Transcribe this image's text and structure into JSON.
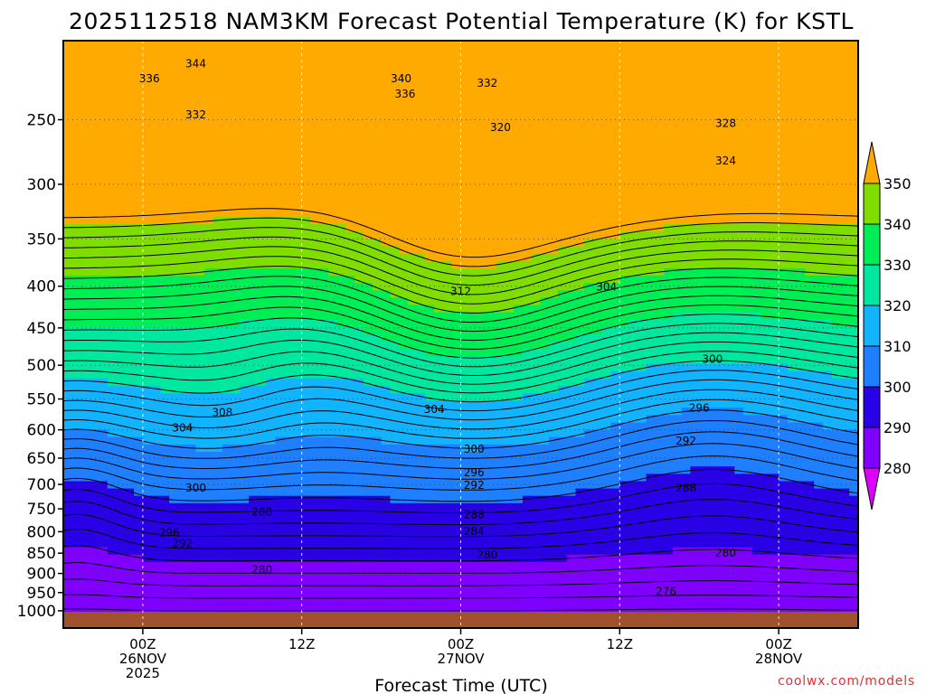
{
  "chart_data": {
    "type": "contour",
    "title": "2025112518 NAM3KM Forecast Potential Temperature (K) for KSTL",
    "xlabel": "Forecast Time (UTC)",
    "ylabel": "",
    "x_ticks": [
      {
        "hour": 0,
        "lines": [
          "00Z",
          "26NOV",
          "2025"
        ]
      },
      {
        "hour": 12,
        "lines": [
          "12Z"
        ]
      },
      {
        "hour": 24,
        "lines": [
          "00Z",
          "27NOV"
        ]
      },
      {
        "hour": 36,
        "lines": [
          "12Z"
        ]
      },
      {
        "hour": 48,
        "lines": [
          "00Z",
          "28NOV"
        ]
      }
    ],
    "xlim_hours": [
      -6,
      54
    ],
    "y_ticks": [
      250,
      300,
      350,
      400,
      450,
      500,
      550,
      600,
      650,
      700,
      750,
      800,
      850,
      900,
      950,
      1000
    ],
    "ylim": [
      200,
      1050
    ],
    "y_scale": "log-pressure",
    "colorbar": {
      "levels": [
        280,
        290,
        300,
        310,
        320,
        330,
        340,
        350
      ],
      "colors": [
        "#dd00ff",
        "#8000ff",
        "#2a00e6",
        "#1e7fff",
        "#12b4ff",
        "#00e8a0",
        "#00ee55",
        "#80dd00",
        "#ffff00",
        "#ffaa00"
      ]
    },
    "contour_interval_K": 2,
    "contour_labels": [
      {
        "hour": 0.5,
        "p": 222,
        "text": "336"
      },
      {
        "hour": 4.0,
        "p": 213,
        "text": "344"
      },
      {
        "hour": 4.0,
        "p": 246,
        "text": "332"
      },
      {
        "hour": 19.5,
        "p": 222,
        "text": "340"
      },
      {
        "hour": 19.8,
        "p": 232,
        "text": "336"
      },
      {
        "hour": 26.0,
        "p": 225,
        "text": "332"
      },
      {
        "hour": 27.0,
        "p": 255,
        "text": "320"
      },
      {
        "hour": 44.0,
        "p": 252,
        "text": "328"
      },
      {
        "hour": 44.0,
        "p": 280,
        "text": "324"
      },
      {
        "hour": 24.0,
        "p": 405,
        "text": "312"
      },
      {
        "hour": 35.0,
        "p": 400,
        "text": "304"
      },
      {
        "hour": 43.0,
        "p": 490,
        "text": "300"
      },
      {
        "hour": 6.0,
        "p": 570,
        "text": "308"
      },
      {
        "hour": 3.0,
        "p": 595,
        "text": "304"
      },
      {
        "hour": 22.0,
        "p": 565,
        "text": "304"
      },
      {
        "hour": 42.0,
        "p": 563,
        "text": "296"
      },
      {
        "hour": 41.0,
        "p": 618,
        "text": "292"
      },
      {
        "hour": 25.0,
        "p": 632,
        "text": "300"
      },
      {
        "hour": 25.0,
        "p": 675,
        "text": "296"
      },
      {
        "hour": 25.0,
        "p": 700,
        "text": "292"
      },
      {
        "hour": 4.0,
        "p": 705,
        "text": "300"
      },
      {
        "hour": 41.0,
        "p": 705,
        "text": "288"
      },
      {
        "hour": 9.0,
        "p": 755,
        "text": "288"
      },
      {
        "hour": 25.0,
        "p": 760,
        "text": "288"
      },
      {
        "hour": 25.0,
        "p": 797,
        "text": "284"
      },
      {
        "hour": 2.0,
        "p": 800,
        "text": "296"
      },
      {
        "hour": 3.0,
        "p": 825,
        "text": "292"
      },
      {
        "hour": 26.0,
        "p": 852,
        "text": "280"
      },
      {
        "hour": 44.0,
        "p": 848,
        "text": "280"
      },
      {
        "hour": 9.0,
        "p": 888,
        "text": "280"
      },
      {
        "hour": 39.5,
        "p": 945,
        "text": "276"
      }
    ]
  },
  "footer": {
    "credit": "coolwx.com/models"
  }
}
